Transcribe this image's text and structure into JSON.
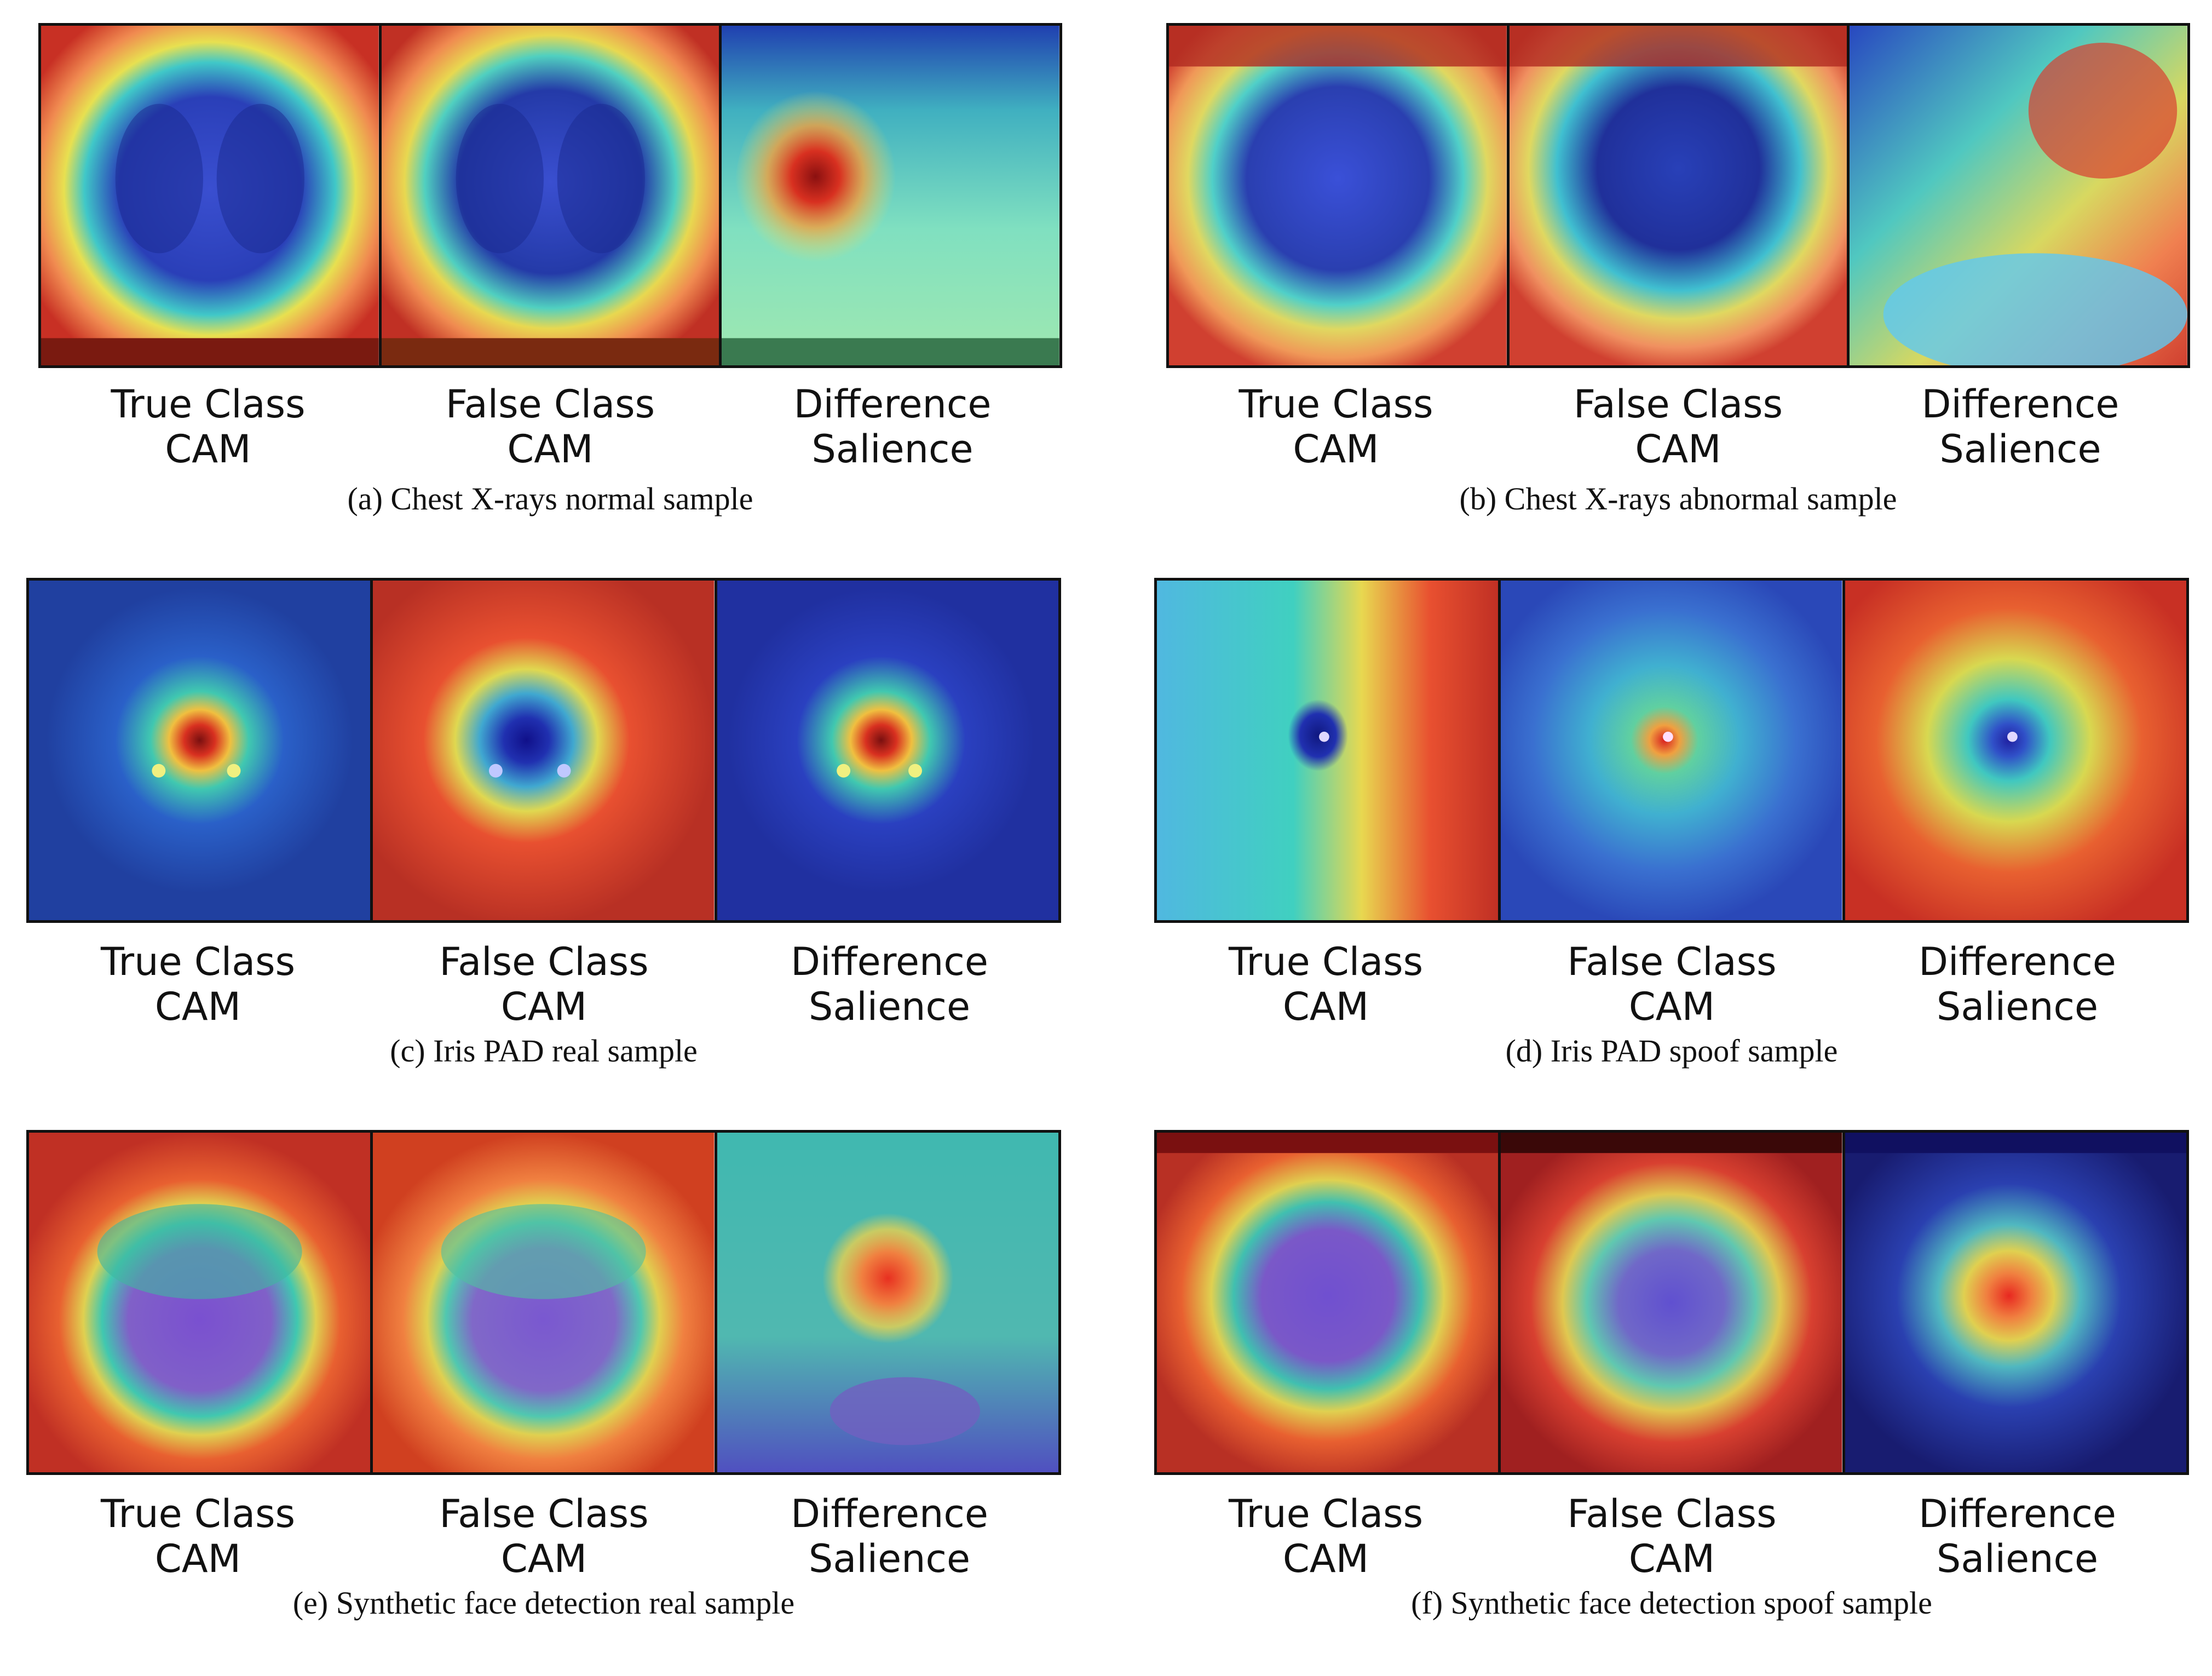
{
  "panel_labels": [
    {
      "line1": "True Class",
      "line2": "CAM"
    },
    {
      "line1": "False Class",
      "line2": "CAM"
    },
    {
      "line1": "Difference",
      "line2": "Salience"
    }
  ],
  "panels": [
    {
      "id": "a",
      "caption": "(a) Chest X-rays normal sample",
      "subject": "chest-xray"
    },
    {
      "id": "b",
      "caption": "(b) Chest X-rays abnormal sample",
      "subject": "chest-xray"
    },
    {
      "id": "c",
      "caption": "(c) Iris PAD real sample",
      "subject": "iris"
    },
    {
      "id": "d",
      "caption": "(d) Iris PAD spoof sample",
      "subject": "iris"
    },
    {
      "id": "e",
      "caption": "(e) Synthetic face detection real sample",
      "subject": "face"
    },
    {
      "id": "f",
      "caption": "(f) Synthetic face detection spoof sample",
      "subject": "face"
    }
  ],
  "colors": {
    "jet_red": "#d7301f",
    "jet_orange": "#f0a040",
    "jet_yellow": "#e8e050",
    "jet_cyan": "#50d8d0",
    "jet_blue": "#2e52d0",
    "jet_navy": "#1a1f80"
  }
}
